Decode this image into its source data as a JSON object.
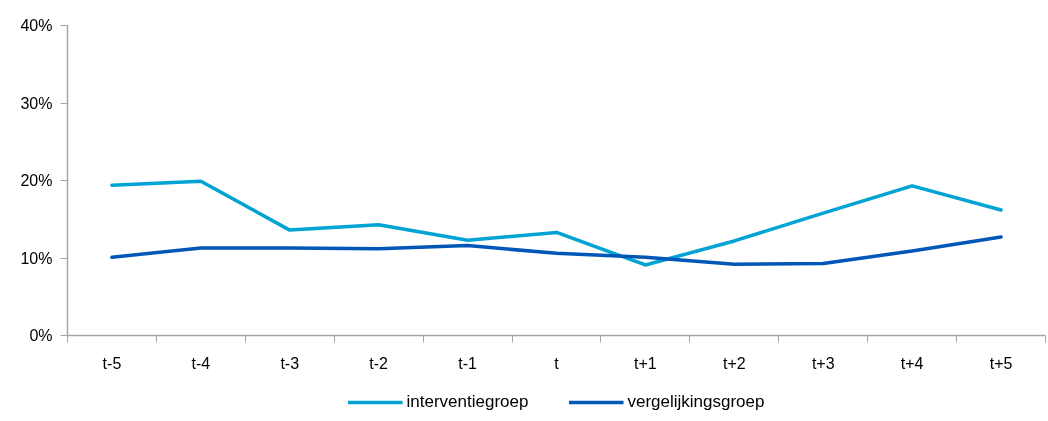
{
  "chart_data": {
    "type": "line",
    "categories": [
      "t-5",
      "t-4",
      "t-3",
      "t-2",
      "t-1",
      "t",
      "t+1",
      "t+2",
      "t+3",
      "t+4",
      "t+5"
    ],
    "series": [
      {
        "name": "interventiegroep",
        "color": "#00a3d3",
        "values": [
          19.4,
          19.9,
          13.6,
          14.3,
          12.3,
          13.3,
          9.1,
          12.2,
          15.8,
          19.3,
          16.2
        ]
      },
      {
        "name": "vergelijkingsgroep",
        "color": "#0057b8",
        "values": [
          10.1,
          11.3,
          11.3,
          11.2,
          11.6,
          10.6,
          10.1,
          9.2,
          9.3,
          10.9,
          12.7
        ]
      }
    ],
    "ylim": [
      0,
      40
    ],
    "yticks": [
      {
        "value": 0,
        "label": "0%"
      },
      {
        "value": 10,
        "label": "10%"
      },
      {
        "value": 20,
        "label": "20%"
      },
      {
        "value": 30,
        "label": "30%"
      },
      {
        "value": 40,
        "label": "40%"
      }
    ],
    "legend": "bottom",
    "line_style": "solid"
  }
}
